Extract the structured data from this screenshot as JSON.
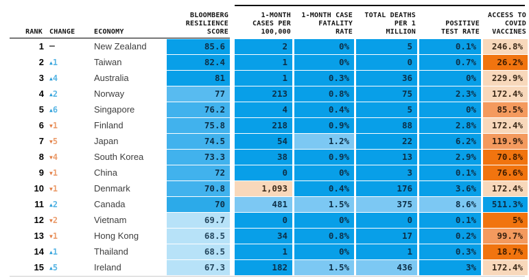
{
  "chart_data": {
    "type": "table",
    "header": {
      "rank": "RANK",
      "change": "CHANGE",
      "economy": "ECONOMY",
      "score": "BLOOMBERG\nRESILIENCE\nSCORE",
      "cases": "1-MONTH\nCASES PER\n100,000",
      "fatality": "1-MONTH CASE\nFATALITY\nRATE",
      "deaths": "TOTAL DEATHS\nPER 1\nMILLION",
      "positive": "POSITIVE\nTEST RATE",
      "vaccines": "ACCESS TO\nCOVID\nVACCINES"
    },
    "rows": [
      {
        "rank": "1",
        "dir": "same",
        "delta": "–",
        "economy": "New Zealand",
        "score": {
          "v": "85.6",
          "c": "b1"
        },
        "cells": [
          {
            "v": "2",
            "c": "b1"
          },
          {
            "v": "0%",
            "c": "b1"
          },
          {
            "v": "5",
            "c": "b1"
          },
          {
            "v": "0.1%",
            "c": "b1"
          },
          {
            "v": "246.8%",
            "c": "p1"
          }
        ]
      },
      {
        "rank": "2",
        "dir": "up",
        "delta": "1",
        "economy": "Taiwan",
        "score": {
          "v": "82.4",
          "c": "b1"
        },
        "cells": [
          {
            "v": "1",
            "c": "b1"
          },
          {
            "v": "0%",
            "c": "b1"
          },
          {
            "v": "0",
            "c": "b1"
          },
          {
            "v": "0.7%",
            "c": "b1"
          },
          {
            "v": "26.2%",
            "c": "o1"
          }
        ]
      },
      {
        "rank": "3",
        "dir": "up",
        "delta": "4",
        "economy": "Australia",
        "score": {
          "v": "81",
          "c": "b1"
        },
        "cells": [
          {
            "v": "1",
            "c": "b1"
          },
          {
            "v": "0.3%",
            "c": "b1"
          },
          {
            "v": "36",
            "c": "b1"
          },
          {
            "v": "0%",
            "c": "b1"
          },
          {
            "v": "229.9%",
            "c": "p1"
          }
        ]
      },
      {
        "rank": "4",
        "dir": "up",
        "delta": "2",
        "economy": "Norway",
        "score": {
          "v": "77",
          "c": "b5"
        },
        "cells": [
          {
            "v": "213",
            "c": "b1"
          },
          {
            "v": "0.8%",
            "c": "b1"
          },
          {
            "v": "75",
            "c": "b1"
          },
          {
            "v": "2.3%",
            "c": "b1"
          },
          {
            "v": "172.4%",
            "c": "p1"
          }
        ]
      },
      {
        "rank": "5",
        "dir": "up",
        "delta": "6",
        "economy": "Singapore",
        "score": {
          "v": "76.2",
          "c": "b2"
        },
        "cells": [
          {
            "v": "4",
            "c": "b1"
          },
          {
            "v": "0.4%",
            "c": "b1"
          },
          {
            "v": "5",
            "c": "b1"
          },
          {
            "v": "0%",
            "c": "b1"
          },
          {
            "v": "85.5%",
            "c": "o2"
          }
        ]
      },
      {
        "rank": "6",
        "dir": "down",
        "delta": "1",
        "economy": "Finland",
        "score": {
          "v": "75.8",
          "c": "b2"
        },
        "cells": [
          {
            "v": "218",
            "c": "b1"
          },
          {
            "v": "0.9%",
            "c": "b1"
          },
          {
            "v": "88",
            "c": "b1"
          },
          {
            "v": "2.8%",
            "c": "b1"
          },
          {
            "v": "172.4%",
            "c": "p1"
          }
        ]
      },
      {
        "rank": "7",
        "dir": "down",
        "delta": "5",
        "economy": "Japan",
        "score": {
          "v": "74.5",
          "c": "b2"
        },
        "cells": [
          {
            "v": "54",
            "c": "b1"
          },
          {
            "v": "1.2%",
            "c": "b3"
          },
          {
            "v": "22",
            "c": "b1"
          },
          {
            "v": "6.2%",
            "c": "b1"
          },
          {
            "v": "119.9%",
            "c": "o2"
          }
        ]
      },
      {
        "rank": "8",
        "dir": "down",
        "delta": "4",
        "economy": "South Korea",
        "score": {
          "v": "73.3",
          "c": "b2"
        },
        "cells": [
          {
            "v": "38",
            "c": "b1"
          },
          {
            "v": "0.9%",
            "c": "b1"
          },
          {
            "v": "13",
            "c": "b1"
          },
          {
            "v": "2.9%",
            "c": "b1"
          },
          {
            "v": "70.8%",
            "c": "o1"
          }
        ]
      },
      {
        "rank": "9",
        "dir": "down",
        "delta": "1",
        "economy": "China",
        "score": {
          "v": "72",
          "c": "b2"
        },
        "cells": [
          {
            "v": "0",
            "c": "b1"
          },
          {
            "v": "0%",
            "c": "b1"
          },
          {
            "v": "3",
            "c": "b1"
          },
          {
            "v": "0.1%",
            "c": "b1"
          },
          {
            "v": "76.6%",
            "c": "o1"
          }
        ]
      },
      {
        "rank": "10",
        "dir": "down",
        "delta": "1",
        "economy": "Denmark",
        "score": {
          "v": "70.8",
          "c": "b2"
        },
        "cells": [
          {
            "v": "1,093",
            "c": "p1"
          },
          {
            "v": "0.4%",
            "c": "b1"
          },
          {
            "v": "176",
            "c": "b1"
          },
          {
            "v": "3.6%",
            "c": "b1"
          },
          {
            "v": "172.4%",
            "c": "p1"
          }
        ]
      },
      {
        "rank": "11",
        "dir": "up",
        "delta": "2",
        "economy": "Canada",
        "score": {
          "v": "70",
          "c": "b6"
        },
        "cells": [
          {
            "v": "481",
            "c": "b3"
          },
          {
            "v": "1.5%",
            "c": "b3"
          },
          {
            "v": "375",
            "c": "b3"
          },
          {
            "v": "8.6%",
            "c": "b3"
          },
          {
            "v": "511.3%",
            "c": "b1"
          }
        ]
      },
      {
        "rank": "12",
        "dir": "down",
        "delta": "2",
        "economy": "Vietnam",
        "score": {
          "v": "69.7",
          "c": "b4"
        },
        "cells": [
          {
            "v": "0",
            "c": "b1"
          },
          {
            "v": "0%",
            "c": "b1"
          },
          {
            "v": "0",
            "c": "b1"
          },
          {
            "v": "0.1%",
            "c": "b1"
          },
          {
            "v": "5%",
            "c": "o1"
          }
        ]
      },
      {
        "rank": "13",
        "dir": "down",
        "delta": "1",
        "economy": "Hong Kong",
        "score": {
          "v": "68.5",
          "c": "b4"
        },
        "cells": [
          {
            "v": "34",
            "c": "b1"
          },
          {
            "v": "0.8%",
            "c": "b1"
          },
          {
            "v": "17",
            "c": "b1"
          },
          {
            "v": "0.2%",
            "c": "b1"
          },
          {
            "v": "99.7%",
            "c": "o2"
          }
        ]
      },
      {
        "rank": "14",
        "dir": "up",
        "delta": "1",
        "economy": "Thailand",
        "score": {
          "v": "68.5",
          "c": "b4"
        },
        "cells": [
          {
            "v": "1",
            "c": "b1"
          },
          {
            "v": "0%",
            "c": "b1"
          },
          {
            "v": "1",
            "c": "b1"
          },
          {
            "v": "0.3%",
            "c": "b1"
          },
          {
            "v": "18.7%",
            "c": "o1"
          }
        ]
      },
      {
        "rank": "15",
        "dir": "up",
        "delta": "5",
        "economy": "Ireland",
        "score": {
          "v": "67.3",
          "c": "b4"
        },
        "cells": [
          {
            "v": "182",
            "c": "b1"
          },
          {
            "v": "1.5%",
            "c": "b3"
          },
          {
            "v": "436",
            "c": "b3"
          },
          {
            "v": "3%",
            "c": "b1"
          },
          {
            "v": "172.4%",
            "c": "p1"
          }
        ]
      }
    ]
  },
  "icons": {
    "up": "▲",
    "down": "▼"
  },
  "palette": {
    "b1": {
      "bg": "#089fe8",
      "fg": "#0d2f47"
    },
    "b2": {
      "bg": "#41b2ed",
      "fg": "#0d2f47"
    },
    "b3": {
      "bg": "#7cc8f3",
      "fg": "#0d2f47"
    },
    "b4": {
      "bg": "#b7e2f8",
      "fg": "#25475e"
    },
    "b5": {
      "bg": "#58bbf0",
      "fg": "#0d2f47"
    },
    "b6": {
      "bg": "#2caae9",
      "fg": "#0d2f47"
    },
    "p1": {
      "bg": "#f8d8bb",
      "fg": "#3d2b1a"
    },
    "o2": {
      "bg": "#f49a5e",
      "fg": "#3a2210"
    },
    "o1": {
      "bg": "#f1740f",
      "fg": "#3f1c00"
    },
    "change_up_arrow": "#2d9fd9",
    "change_up_num": "#58b5e4",
    "change_down_arrow": "#e27c42",
    "change_down_num": "#eb9d6d"
  }
}
